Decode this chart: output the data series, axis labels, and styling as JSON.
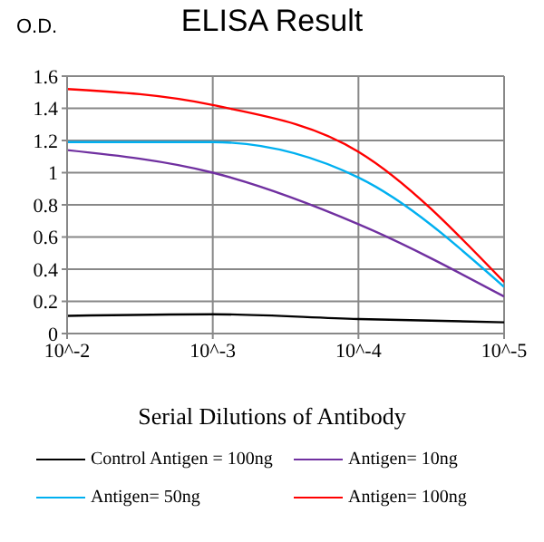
{
  "chart_data": {
    "type": "line",
    "title": "ELISA Result",
    "ylabel": "O.D.",
    "xlabel": "Serial Dilutions  of Antibody",
    "categories": [
      "10^-2",
      "10^-3",
      "10^-4",
      "10^-5"
    ],
    "series": [
      {
        "name": "Control Antigen = 100ng",
        "color": "#000000",
        "values": [
          0.11,
          0.12,
          0.09,
          0.07
        ]
      },
      {
        "name": "Antigen= 10ng",
        "color": "#7030a0",
        "values": [
          1.14,
          1.0,
          0.68,
          0.23
        ]
      },
      {
        "name": "Antigen= 50ng",
        "color": "#00b0f0",
        "values": [
          1.19,
          1.19,
          0.97,
          0.29
        ]
      },
      {
        "name": "Antigen= 100ng",
        "color": "#ff0000",
        "values": [
          1.52,
          1.42,
          1.13,
          0.32
        ]
      }
    ],
    "ylim": [
      0,
      1.6
    ],
    "yticks": [
      0,
      0.2,
      0.4,
      0.6,
      0.8,
      1,
      1.2,
      1.4,
      1.6
    ],
    "grid": true,
    "legend": "bottom",
    "marker": "none",
    "line_style": "solid"
  }
}
